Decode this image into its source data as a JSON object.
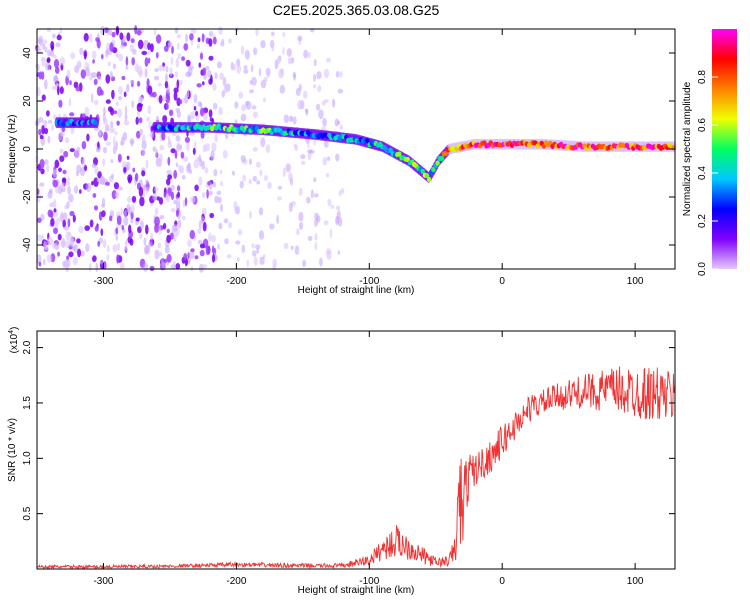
{
  "figure_title": "C2E5.2025.365.03.08.G25",
  "chart_data": [
    {
      "type": "heatmap",
      "title": "",
      "xlabel": "Height of straight line (km)",
      "ylabel": "Frequency (Hz)",
      "xlim": [
        -350,
        130
      ],
      "ylim": [
        -50,
        50
      ],
      "x_ticks": [
        -300,
        -200,
        -100,
        0,
        100
      ],
      "y_ticks": [
        -40,
        -20,
        0,
        20,
        40
      ],
      "colorbar": {
        "label": "Normalized spectral amplitude",
        "range": [
          0,
          1
        ],
        "ticks": [
          0.0,
          0.2,
          0.4,
          0.6,
          0.8
        ],
        "colors": [
          "#e6c8ff",
          "#8000ff",
          "#0000ff",
          "#00c8ff",
          "#00ff60",
          "#f0ff00",
          "#ff8000",
          "#ff0000",
          "#ff00ff"
        ]
      },
      "trace": {
        "x": [
          -330,
          -300,
          -260,
          -220,
          -180,
          -140,
          -110,
          -90,
          -70,
          -55,
          -48,
          -40,
          -30,
          -20,
          0,
          30,
          60,
          100,
          130
        ],
        "frequency": [
          11,
          11,
          9,
          9,
          8,
          6,
          4,
          1,
          -5,
          -12,
          -5,
          0,
          1,
          2,
          2,
          2,
          1,
          1,
          1
        ],
        "amplitude": [
          0.25,
          0.2,
          0.3,
          0.45,
          0.45,
          0.35,
          0.35,
          0.4,
          0.55,
          0.45,
          0.5,
          0.75,
          0.8,
          0.85,
          0.9,
          0.85,
          0.85,
          0.85,
          0.8
        ]
      },
      "noise_region_x": [
        -350,
        -120
      ]
    },
    {
      "type": "line",
      "title": "",
      "xlabel": "Height of straight line (km)",
      "ylabel": "SNR (10 * v/v)",
      "y_multiplier": "(x10",
      "y_multiplier_exp": "4",
      "y_multiplier_close": ")",
      "xlim": [
        -350,
        130
      ],
      "ylim": [
        0,
        2.15
      ],
      "x_ticks": [
        -300,
        -200,
        -100,
        0,
        100
      ],
      "y_ticks": [
        0.5,
        1.0,
        1.5,
        2.0
      ],
      "series": [
        {
          "name": "SNR",
          "color": "#f03232",
          "x": [
            -350,
            -300,
            -250,
            -200,
            -150,
            -120,
            -100,
            -90,
            -80,
            -70,
            -60,
            -50,
            -40,
            -35,
            -32,
            -30,
            -28,
            -25,
            -20,
            -10,
            0,
            20,
            40,
            60,
            80,
            100,
            115,
            130
          ],
          "mean": [
            0.02,
            0.02,
            0.025,
            0.04,
            0.03,
            0.03,
            0.08,
            0.18,
            0.25,
            0.2,
            0.12,
            0.06,
            0.07,
            0.2,
            0.7,
            0.5,
            0.7,
            0.85,
            0.9,
            1.0,
            1.15,
            1.45,
            1.55,
            1.6,
            1.62,
            1.6,
            1.58,
            1.55
          ],
          "noise": [
            0.015,
            0.015,
            0.015,
            0.02,
            0.02,
            0.02,
            0.05,
            0.1,
            0.15,
            0.12,
            0.08,
            0.04,
            0.05,
            0.15,
            0.5,
            0.4,
            0.3,
            0.2,
            0.15,
            0.15,
            0.15,
            0.12,
            0.12,
            0.15,
            0.2,
            0.25,
            0.25,
            0.25
          ]
        }
      ]
    }
  ]
}
